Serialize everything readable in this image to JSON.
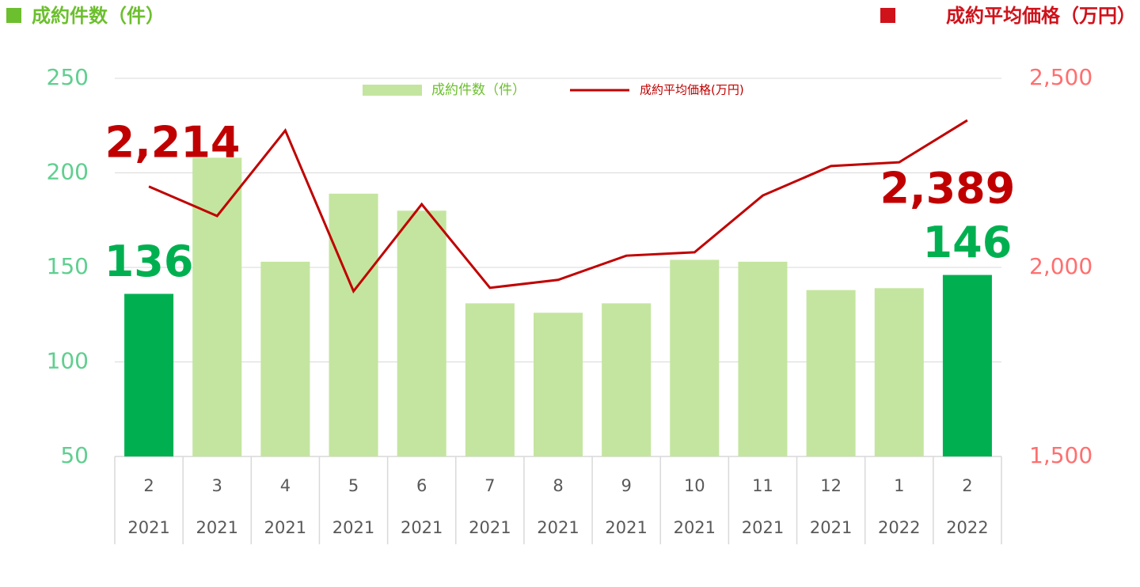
{
  "chart_data": {
    "type": "bar-line",
    "y_label": "成約件数（件）",
    "y2_label": "成約平均価格（万円）",
    "categories": [
      "2",
      "3",
      "4",
      "5",
      "6",
      "7",
      "8",
      "9",
      "10",
      "11",
      "12",
      "1",
      "2"
    ],
    "category_years": [
      "2021",
      "2021",
      "2021",
      "2021",
      "2021",
      "2021",
      "2021",
      "2021",
      "2021",
      "2021",
      "2021",
      "2022",
      "2022"
    ],
    "series": [
      {
        "name": "成約件数（件）",
        "type": "bar",
        "color": "#c4e59f",
        "highlight_color": "#00b050",
        "values": [
          136,
          208,
          153,
          189,
          180,
          131,
          126,
          131,
          154,
          153,
          138,
          139,
          146
        ]
      },
      {
        "name": "成約平均価格(万円)",
        "type": "line",
        "axis": "y2",
        "color": "#c00000",
        "values": [
          2214,
          2136,
          2362,
          1937,
          2167,
          1946,
          1967,
          2031,
          2040,
          2190,
          2268,
          2278,
          2389
        ],
        "value_labels": [
          "2,214",
          null,
          null,
          null,
          null,
          null,
          null,
          null,
          null,
          null,
          null,
          null,
          "2,389"
        ]
      }
    ],
    "highlighted": [
      0,
      12
    ],
    "ylim": [
      50,
      250
    ],
    "yticks": [
      50,
      100,
      150,
      200,
      250
    ],
    "y2lim": [
      1500,
      2500
    ],
    "y2ticks": [
      {
        "value": 1500,
        "label": "1,500"
      },
      {
        "value": 2000,
        "label": "2,000"
      },
      {
        "value": 2500,
        "label": "2,500"
      }
    ],
    "grid": true,
    "legend": "top"
  }
}
